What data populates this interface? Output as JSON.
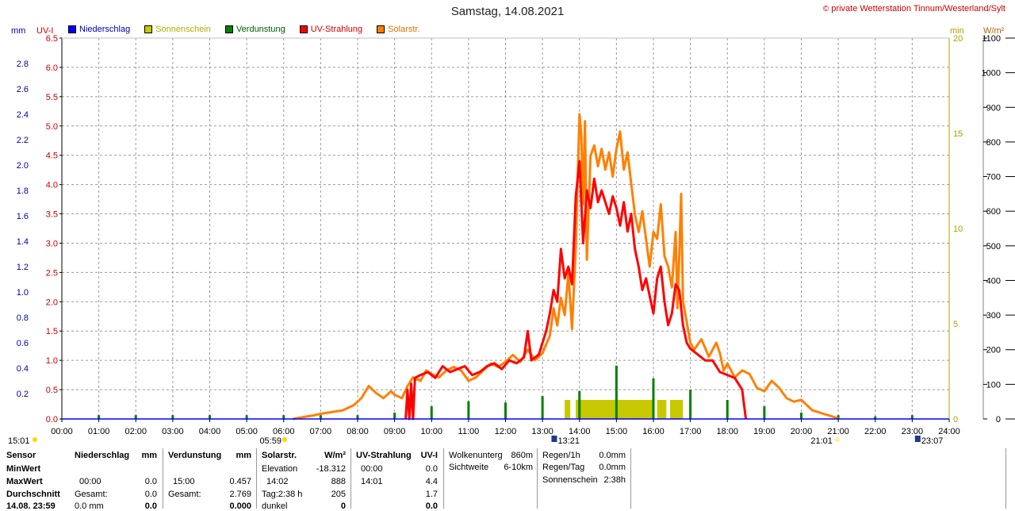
{
  "title": "Samstag, 14.08.2021",
  "credit": "private Wetterstation Tinnum/Westerland/Sylt",
  "credit_symbol": "©",
  "left_units": {
    "mm": "mm",
    "uv": "UV-I"
  },
  "right_units": {
    "min": "min",
    "wm2": "W/m²"
  },
  "legend": [
    {
      "label": "Niederschlag",
      "color": "#0000ff",
      "text_color": "#0000aa"
    },
    {
      "label": "Sonnenschein",
      "color": "#c8c800",
      "text_color": "#b0b000"
    },
    {
      "label": "Verdunstung",
      "color": "#008000",
      "text_color": "#006000"
    },
    {
      "label": "UV-Strahlung",
      "color": "#ff0000",
      "text_color": "#cc0000"
    },
    {
      "label": "Solarstr.",
      "color": "#ff8000",
      "text_color": "#e07000"
    }
  ],
  "sun_events": {
    "sunrise": "05:59",
    "sunset": "21:01",
    "moonrise": "15:01",
    "moon1": "13:21",
    "moon2": "23:07"
  },
  "chart_data": {
    "type": "line",
    "x_ticks": [
      "00:00",
      "01:00",
      "02:00",
      "03:00",
      "04:00",
      "05:00",
      "06:00",
      "07:00",
      "08:00",
      "09:00",
      "10:00",
      "11:00",
      "12:00",
      "13:00",
      "14:00",
      "15:00",
      "16:00",
      "17:00",
      "18:00",
      "19:00",
      "20:00",
      "21:00",
      "22:00",
      "23:00",
      "24:00"
    ],
    "xlim_hours": [
      0,
      24
    ],
    "axes": {
      "mm": {
        "ticks": [
          "0.0",
          "0.2",
          "0.4",
          "0.6",
          "0.8",
          "1.0",
          "1.2",
          "1.4",
          "1.6",
          "1.8",
          "2.0",
          "2.2",
          "2.4",
          "2.6",
          "2.8"
        ],
        "range": [
          0,
          3.0
        ]
      },
      "uv": {
        "ticks": [
          "0.0",
          "0.5",
          "1.0",
          "1.5",
          "2.0",
          "2.5",
          "3.0",
          "3.5",
          "4.0",
          "4.5",
          "5.0",
          "5.5",
          "6.0",
          "6.5"
        ],
        "range": [
          0,
          6.5
        ]
      },
      "min": {
        "ticks": [
          "0",
          "5",
          "10",
          "15",
          "20"
        ],
        "range": [
          0,
          20
        ]
      },
      "wm2": {
        "ticks": [
          "0",
          "100",
          "200",
          "300",
          "400",
          "500",
          "600",
          "700",
          "800",
          "900",
          "1000",
          "1100"
        ],
        "range": [
          0,
          1100
        ]
      }
    },
    "grid": true,
    "series": [
      {
        "name": "Solarstr.",
        "axis": "wm2",
        "color": "#ff8000",
        "points": [
          [
            6.25,
            0
          ],
          [
            6.5,
            5
          ],
          [
            6.8,
            10
          ],
          [
            7.0,
            15
          ],
          [
            7.3,
            20
          ],
          [
            7.6,
            25
          ],
          [
            7.9,
            40
          ],
          [
            8.1,
            60
          ],
          [
            8.3,
            95
          ],
          [
            8.5,
            75
          ],
          [
            8.7,
            60
          ],
          [
            8.9,
            80
          ],
          [
            9.0,
            70
          ],
          [
            9.2,
            60
          ],
          [
            9.35,
            95
          ],
          [
            9.5,
            120
          ],
          [
            9.7,
            110
          ],
          [
            9.85,
            140
          ],
          [
            10.0,
            130
          ],
          [
            10.2,
            120
          ],
          [
            10.4,
            140
          ],
          [
            10.6,
            150
          ],
          [
            10.8,
            140
          ],
          [
            11.0,
            110
          ],
          [
            11.2,
            120
          ],
          [
            11.4,
            140
          ],
          [
            11.6,
            160
          ],
          [
            11.8,
            150
          ],
          [
            12.0,
            165
          ],
          [
            12.2,
            185
          ],
          [
            12.4,
            165
          ],
          [
            12.6,
            200
          ],
          [
            12.8,
            170
          ],
          [
            13.0,
            190
          ],
          [
            13.2,
            240
          ],
          [
            13.3,
            320
          ],
          [
            13.4,
            270
          ],
          [
            13.5,
            350
          ],
          [
            13.6,
            300
          ],
          [
            13.7,
            420
          ],
          [
            13.8,
            260
          ],
          [
            13.9,
            500
          ],
          [
            14.0,
            880
          ],
          [
            14.05,
            820
          ],
          [
            14.1,
            620
          ],
          [
            14.15,
            860
          ],
          [
            14.2,
            460
          ],
          [
            14.3,
            760
          ],
          [
            14.4,
            790
          ],
          [
            14.5,
            730
          ],
          [
            14.6,
            780
          ],
          [
            14.7,
            720
          ],
          [
            14.8,
            770
          ],
          [
            14.9,
            700
          ],
          [
            15.0,
            780
          ],
          [
            15.1,
            830
          ],
          [
            15.2,
            720
          ],
          [
            15.3,
            770
          ],
          [
            15.4,
            680
          ],
          [
            15.5,
            590
          ],
          [
            15.6,
            540
          ],
          [
            15.7,
            600
          ],
          [
            15.8,
            520
          ],
          [
            15.9,
            440
          ],
          [
            16.0,
            540
          ],
          [
            16.1,
            520
          ],
          [
            16.2,
            620
          ],
          [
            16.3,
            470
          ],
          [
            16.4,
            440
          ],
          [
            16.5,
            380
          ],
          [
            16.6,
            540
          ],
          [
            16.65,
            320
          ],
          [
            16.7,
            470
          ],
          [
            16.75,
            650
          ],
          [
            16.8,
            340
          ],
          [
            16.9,
            280
          ],
          [
            17.0,
            220
          ],
          [
            17.1,
            200
          ],
          [
            17.3,
            230
          ],
          [
            17.5,
            180
          ],
          [
            17.7,
            220
          ],
          [
            17.8,
            190
          ],
          [
            17.9,
            140
          ],
          [
            18.0,
            160
          ],
          [
            18.2,
            120
          ],
          [
            18.4,
            140
          ],
          [
            18.6,
            130
          ],
          [
            18.8,
            90
          ],
          [
            19.0,
            80
          ],
          [
            19.2,
            110
          ],
          [
            19.4,
            90
          ],
          [
            19.6,
            60
          ],
          [
            19.8,
            50
          ],
          [
            20.0,
            55
          ],
          [
            20.3,
            25
          ],
          [
            20.6,
            15
          ],
          [
            20.9,
            5
          ],
          [
            21.0,
            0
          ]
        ]
      },
      {
        "name": "UV-Strahlung",
        "axis": "uv",
        "color": "#ff0000",
        "points": [
          [
            9.3,
            0.0
          ],
          [
            9.35,
            0.5
          ],
          [
            9.4,
            0.0
          ],
          [
            9.45,
            0.6
          ],
          [
            9.5,
            0.0
          ],
          [
            9.55,
            0.7
          ],
          [
            9.7,
            0.75
          ],
          [
            9.9,
            0.8
          ],
          [
            10.1,
            0.7
          ],
          [
            10.3,
            0.9
          ],
          [
            10.5,
            0.8
          ],
          [
            10.7,
            0.85
          ],
          [
            10.9,
            0.9
          ],
          [
            11.1,
            0.75
          ],
          [
            11.3,
            0.8
          ],
          [
            11.5,
            0.9
          ],
          [
            11.7,
            0.95
          ],
          [
            11.9,
            0.85
          ],
          [
            12.1,
            1.0
          ],
          [
            12.3,
            0.95
          ],
          [
            12.5,
            1.05
          ],
          [
            12.6,
            1.5
          ],
          [
            12.7,
            1.0
          ],
          [
            12.9,
            1.1
          ],
          [
            13.1,
            1.5
          ],
          [
            13.2,
            1.8
          ],
          [
            13.3,
            2.2
          ],
          [
            13.4,
            2.0
          ],
          [
            13.5,
            2.9
          ],
          [
            13.6,
            2.4
          ],
          [
            13.7,
            2.6
          ],
          [
            13.8,
            2.3
          ],
          [
            13.9,
            3.8
          ],
          [
            14.0,
            4.4
          ],
          [
            14.1,
            3.0
          ],
          [
            14.2,
            3.9
          ],
          [
            14.3,
            3.6
          ],
          [
            14.4,
            4.1
          ],
          [
            14.5,
            3.7
          ],
          [
            14.6,
            3.9
          ],
          [
            14.7,
            3.7
          ],
          [
            14.8,
            3.5
          ],
          [
            14.9,
            3.8
          ],
          [
            15.0,
            3.6
          ],
          [
            15.1,
            3.3
          ],
          [
            15.2,
            3.7
          ],
          [
            15.3,
            3.2
          ],
          [
            15.4,
            3.5
          ],
          [
            15.5,
            2.9
          ],
          [
            15.6,
            2.6
          ],
          [
            15.7,
            2.2
          ],
          [
            15.8,
            2.4
          ],
          [
            15.9,
            2.1
          ],
          [
            16.0,
            1.8
          ],
          [
            16.1,
            2.4
          ],
          [
            16.2,
            2.6
          ],
          [
            16.3,
            2.0
          ],
          [
            16.4,
            1.6
          ],
          [
            16.5,
            1.8
          ],
          [
            16.6,
            2.3
          ],
          [
            16.7,
            2.2
          ],
          [
            16.8,
            1.6
          ],
          [
            16.9,
            1.3
          ],
          [
            17.0,
            1.2
          ],
          [
            17.2,
            1.1
          ],
          [
            17.4,
            1.0
          ],
          [
            17.6,
            1.0
          ],
          [
            17.8,
            0.8
          ],
          [
            18.0,
            0.75
          ],
          [
            18.2,
            0.7
          ],
          [
            18.4,
            0.5
          ],
          [
            18.5,
            0.0
          ]
        ]
      }
    ],
    "bars": [
      {
        "name": "Verdunstung",
        "axis": "mm",
        "color": "#008000",
        "values": [
          [
            1,
            0.03
          ],
          [
            2,
            0.03
          ],
          [
            3,
            0.03
          ],
          [
            4,
            0.03
          ],
          [
            5,
            0.03
          ],
          [
            6,
            0.03
          ],
          [
            7,
            0.03
          ],
          [
            8,
            0.03
          ],
          [
            9,
            0.05
          ],
          [
            10,
            0.1
          ],
          [
            11,
            0.14
          ],
          [
            12,
            0.13
          ],
          [
            13,
            0.18
          ],
          [
            14,
            0.22
          ],
          [
            15,
            0.42
          ],
          [
            16,
            0.32
          ],
          [
            17,
            0.23
          ],
          [
            18,
            0.15
          ],
          [
            19,
            0.1
          ],
          [
            20,
            0.05
          ],
          [
            21,
            0.03
          ],
          [
            22,
            0.02
          ],
          [
            23,
            0.03
          ]
        ]
      },
      {
        "name": "Sonnenschein",
        "axis": "min",
        "color": "#c8c800",
        "ranges": [
          [
            13.6,
            13.75,
            1.0
          ],
          [
            13.9,
            16.0,
            1.0
          ],
          [
            16.1,
            16.35,
            1.0
          ],
          [
            16.45,
            16.8,
            1.0
          ]
        ]
      }
    ]
  },
  "info": {
    "row_labels": [
      "Sensor",
      "MinWert",
      "MaxWert",
      "Durchschnitt",
      "14.08. 23:59"
    ],
    "niederschlag": {
      "header": "Niederschlag",
      "unit": "mm",
      "max_time": "00:00",
      "max_val": "0.0",
      "sum_label": "Gesamt:",
      "sum_val": "0.0",
      "now_val": "0.0 mm",
      "now2": "0.0"
    },
    "verdunstung": {
      "header": "Verdunstung",
      "unit": "mm",
      "max_time": "15:00",
      "max_val": "0.457",
      "sum_label": "Gesamt:",
      "sum_val": "2.769",
      "now_val": "0.000"
    },
    "solar": {
      "header": "Solarstr.",
      "unit": "W/m²",
      "elev_label": "Elevation",
      "elev_val": "-18.312",
      "max_time": "14:02",
      "max_val": "888",
      "tag_label": "Tag:2:38 h",
      "tag_val": "205",
      "dark_label": "dunkel",
      "dark_val": "0"
    },
    "uv": {
      "header": "UV-Strahlung",
      "unit": "UV-I",
      "min_time": "00:00",
      "min_val": "0.0",
      "max_time": "14:01",
      "max_val": "4.4",
      "avg_val": "1.7",
      "now_val": "0.0"
    },
    "clouds": {
      "base_label": "Wolkenunterg",
      "base_val": "860m",
      "vis_label": "Sichtweite",
      "vis_val": "6-10km"
    },
    "rain": {
      "h_label": "Regen/1h",
      "h_val": "0.0mm",
      "d_label": "Regen/Tag",
      "d_val": "0.0mm",
      "sun_label": "Sonnenschein",
      "sun_val": "2:38h"
    }
  }
}
